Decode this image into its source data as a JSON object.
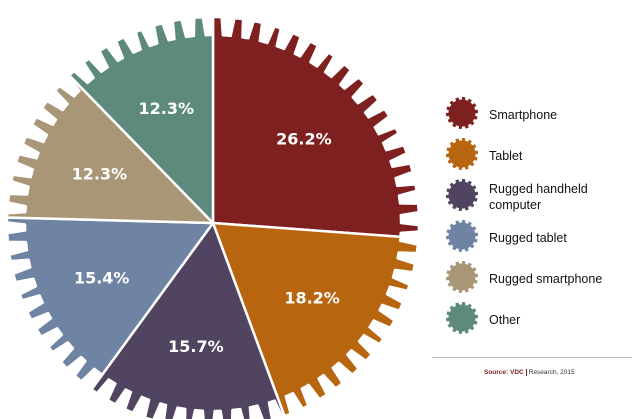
{
  "chart_data": {
    "type": "pie",
    "categories": [
      "Smartphone",
      "Tablet",
      "Rugged handheld computer",
      "Rugged tablet",
      "Rugged smartphone",
      "Other"
    ],
    "values": [
      26.2,
      18.2,
      15.7,
      15.4,
      12.3,
      12.3
    ],
    "labels": [
      "26.2%",
      "18.2%",
      "15.7%",
      "15.4%",
      "12.3%",
      "12.3%"
    ],
    "colors": [
      "#7e2020",
      "#b8650f",
      "#504460",
      "#6f84a2",
      "#a89676",
      "#5e8a7e"
    ],
    "legend_placement": "right",
    "start_angle_deg": 0,
    "direction": "clockwise"
  },
  "legend": {
    "items": [
      {
        "label": "Smartphone",
        "color": "#7e2020"
      },
      {
        "label": "Tablet",
        "color": "#b8650f"
      },
      {
        "label": "Rugged handheld computer",
        "color": "#504460"
      },
      {
        "label": "Rugged tablet",
        "color": "#6f84a2"
      },
      {
        "label": "Rugged smartphone",
        "color": "#a89676"
      },
      {
        "label": "Other",
        "color": "#5e8a7e"
      }
    ]
  },
  "source": {
    "prefix": "Source:",
    "org": "VDC",
    "rest": "Research, 2015"
  }
}
